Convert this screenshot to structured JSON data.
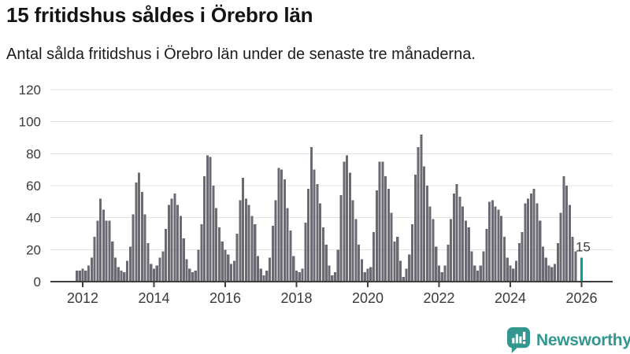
{
  "header": {
    "title": "15 fritidshus såldes i Örebro län",
    "subtitle": "Antal sålda fritidshus i Örebro län under de senaste tre månaderna."
  },
  "chart_data": {
    "type": "bar",
    "title": "15 fritidshus såldes i Örebro län",
    "xlabel": "",
    "ylabel": "",
    "ylim": [
      0,
      125
    ],
    "grid": true,
    "legend": false,
    "y_ticks": [
      0,
      20,
      40,
      60,
      80,
      100,
      120
    ],
    "x_ticks": [
      "2012",
      "2014",
      "2016",
      "2018",
      "2020",
      "2022",
      "2024",
      "2026"
    ],
    "start_month": "2011-11",
    "months_per_bar": 1,
    "series": [
      {
        "name": "Sålda fritidshus",
        "values": [
          7,
          7,
          8,
          7,
          10,
          15,
          28,
          38,
          52,
          45,
          38,
          38,
          25,
          15,
          9,
          7,
          6,
          13,
          22,
          42,
          62,
          68,
          56,
          42,
          24,
          11,
          8,
          10,
          15,
          19,
          33,
          48,
          52,
          55,
          48,
          41,
          27,
          14,
          8,
          6,
          7,
          20,
          36,
          66,
          79,
          78,
          60,
          46,
          34,
          25,
          20,
          17,
          11,
          13,
          30,
          51,
          65,
          52,
          48,
          41,
          36,
          16,
          8,
          4,
          7,
          15,
          35,
          51,
          71,
          70,
          64,
          46,
          32,
          16,
          7,
          6,
          8,
          37,
          58,
          84,
          70,
          61,
          49,
          34,
          23,
          10,
          4,
          6,
          20,
          54,
          75,
          79,
          68,
          51,
          39,
          23,
          14,
          6,
          8,
          9,
          31,
          57,
          75,
          75,
          66,
          58,
          43,
          25,
          28,
          13,
          3,
          8,
          17,
          36,
          67,
          84,
          92,
          72,
          60,
          47,
          39,
          22,
          10,
          6,
          10,
          23,
          39,
          55,
          61,
          53,
          47,
          38,
          34,
          19,
          10,
          7,
          10,
          19,
          33,
          50,
          51,
          47,
          45,
          41,
          28,
          15,
          10,
          8,
          13,
          24,
          31,
          49,
          52,
          55,
          58,
          49,
          38,
          22,
          15,
          10,
          9,
          11,
          24,
          43,
          66,
          60,
          48,
          28,
          19
        ]
      }
    ],
    "highlight": {
      "value": 15,
      "label": "15",
      "gap_slots": 1,
      "color": "#00a29b"
    },
    "bar_color": "#6a6a72",
    "axis_color": "#3f3f3f",
    "grid_color": "#e2e2e2",
    "tick_label_color": "#3a3a3a",
    "annotation_color": "#3d3d3d"
  },
  "footer": {
    "brand": "Newsworthy",
    "brand_color": "#33978f",
    "logo_icon": "bar-chart-speech-bubble-icon"
  }
}
